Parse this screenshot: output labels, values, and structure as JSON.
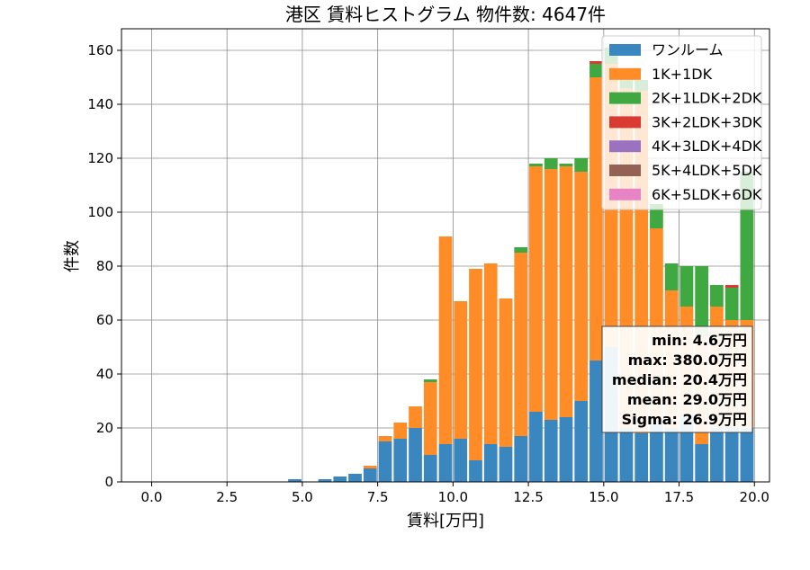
{
  "chart_data": {
    "type": "bar",
    "stacked": true,
    "title": "港区 賃料ヒストグラム  物件数: 4647件",
    "xlabel": "賃料[万円]",
    "ylabel": "件数",
    "xlim": [
      -1.0,
      20.5
    ],
    "ylim": [
      0,
      168
    ],
    "xticks": [
      0.0,
      2.5,
      5.0,
      7.5,
      10.0,
      12.5,
      15.0,
      17.5,
      20.0
    ],
    "xtick_labels": [
      "0.0",
      "2.5",
      "5.0",
      "7.5",
      "10.0",
      "12.5",
      "15.0",
      "17.5",
      "20.0"
    ],
    "yticks": [
      0,
      20,
      40,
      60,
      80,
      100,
      120,
      140,
      160
    ],
    "ytick_labels": [
      "0",
      "20",
      "40",
      "60",
      "80",
      "100",
      "120",
      "140",
      "160"
    ],
    "grid": true,
    "legend_position": "top-right",
    "bin_width": 0.5,
    "bin_starts": [
      4.5,
      5.5,
      6.0,
      6.5,
      7.0,
      7.5,
      8.0,
      8.5,
      9.0,
      9.5,
      10.0,
      10.5,
      11.0,
      11.5,
      12.0,
      12.5,
      13.0,
      13.5,
      14.0,
      14.5,
      15.0,
      15.5,
      16.0,
      16.5,
      17.0,
      17.5,
      18.0,
      18.5,
      19.0,
      19.5
    ],
    "series": [
      {
        "name": "ワンルーム",
        "color": "#3a87c0",
        "values": [
          1,
          1,
          2,
          3,
          5,
          15,
          16,
          20,
          10,
          14,
          16,
          8,
          14,
          13,
          17,
          26,
          23,
          24,
          30,
          45,
          50,
          20,
          18,
          22,
          20,
          25,
          14,
          20,
          20,
          20
        ]
      },
      {
        "name": "1K+1DK",
        "color": "#ff8c27",
        "values": [
          0,
          0,
          0,
          0,
          1,
          2,
          6,
          8,
          27,
          77,
          51,
          71,
          67,
          55,
          68,
          91,
          93,
          93,
          85,
          105,
          105,
          126,
          127,
          72,
          51,
          40,
          40,
          45,
          40,
          40
        ]
      },
      {
        "name": "2K+1LDK+2DK",
        "color": "#40a840",
        "values": [
          0,
          0,
          0,
          0,
          0,
          0,
          0,
          0,
          1,
          0,
          0,
          0,
          0,
          0,
          2,
          1,
          4,
          1,
          5,
          5,
          6,
          4,
          4,
          9,
          10,
          15,
          26,
          8,
          12,
          55
        ]
      },
      {
        "name": "3K+2LDK+3DK",
        "color": "#d93a32",
        "values": [
          0,
          0,
          0,
          0,
          0,
          0,
          0,
          0,
          0,
          0,
          0,
          0,
          0,
          0,
          0,
          0,
          0,
          0,
          0,
          1,
          0,
          0,
          0,
          0,
          0,
          0,
          0,
          0,
          1,
          0
        ]
      },
      {
        "name": "4K+3LDK+4DK",
        "color": "#9b72bf",
        "values": [
          0,
          0,
          0,
          0,
          0,
          0,
          0,
          0,
          0,
          0,
          0,
          0,
          0,
          0,
          0,
          0,
          0,
          0,
          0,
          0,
          0,
          0,
          0,
          0,
          0,
          0,
          0,
          0,
          0,
          0
        ]
      },
      {
        "name": "5K+4LDK+5DK",
        "color": "#946255",
        "values": [
          0,
          0,
          0,
          0,
          0,
          0,
          0,
          0,
          0,
          0,
          0,
          0,
          0,
          0,
          0,
          0,
          0,
          0,
          0,
          0,
          0,
          0,
          0,
          0,
          0,
          0,
          0,
          0,
          0,
          0
        ]
      },
      {
        "name": "6K+5LDK+6DK",
        "color": "#e884c6",
        "values": [
          0,
          0,
          0,
          0,
          0,
          0,
          0,
          0,
          0,
          0,
          0,
          0,
          0,
          0,
          0,
          0,
          0,
          0,
          0,
          0,
          0,
          0,
          0,
          0,
          0,
          0,
          0,
          0,
          0,
          0
        ]
      }
    ],
    "stats": {
      "min": "min: 4.6万円",
      "max": "max: 380.0万円",
      "median": "median: 20.4万円",
      "mean": "mean: 29.0万円",
      "sigma": "Sigma: 26.9万円"
    }
  }
}
